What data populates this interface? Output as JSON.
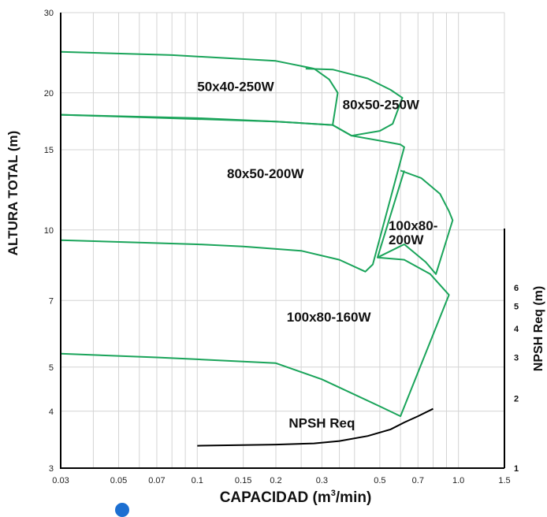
{
  "chart_data": {
    "type": "line",
    "xlabel_main": "CAPACIDAD (m",
    "xlabel_sup": "3",
    "xlabel_tail": "/min)",
    "ylabel": "ALTURA TOTAL (m)",
    "y2label": "NPSH Req (m)",
    "x_scale": "log",
    "y_scale": "log",
    "xlim": [
      0.03,
      1.5
    ],
    "ylim": [
      3,
      30
    ],
    "y2lim": [
      1,
      10
    ],
    "x_ticks": [
      {
        "v": 0.03,
        "label": "0.03"
      },
      {
        "v": 0.05,
        "label": "0.05"
      },
      {
        "v": 0.07,
        "label": "0.07"
      },
      {
        "v": 0.1,
        "label": "0.1"
      },
      {
        "v": 0.15,
        "label": "0.15"
      },
      {
        "v": 0.2,
        "label": "0.2"
      },
      {
        "v": 0.3,
        "label": "0.3"
      },
      {
        "v": 0.5,
        "label": "0.5"
      },
      {
        "v": 0.7,
        "label": "0.7"
      },
      {
        "v": 1.0,
        "label": "1.0"
      },
      {
        "v": 1.5,
        "label": "1.5"
      }
    ],
    "y_ticks": [
      {
        "v": 3,
        "label": "3"
      },
      {
        "v": 4,
        "label": "4"
      },
      {
        "v": 5,
        "label": "5"
      },
      {
        "v": 7,
        "label": "7"
      },
      {
        "v": 10,
        "label": "10"
      },
      {
        "v": 15,
        "label": "15"
      },
      {
        "v": 20,
        "label": "20"
      },
      {
        "v": 30,
        "label": "30"
      }
    ],
    "y2_ticks": [
      {
        "v": 1,
        "label": "1"
      },
      {
        "v": 2,
        "label": "2"
      },
      {
        "v": 3,
        "label": "3"
      },
      {
        "v": 4,
        "label": "4"
      },
      {
        "v": 5,
        "label": "5"
      },
      {
        "v": 6,
        "label": "6"
      }
    ],
    "grid_x": [
      0.03,
      0.04,
      0.05,
      0.06,
      0.07,
      0.08,
      0.09,
      0.1,
      0.15,
      0.2,
      0.25,
      0.3,
      0.35,
      0.4,
      0.5,
      0.6,
      0.7,
      0.8,
      0.9,
      1.0,
      1.5
    ],
    "grid_y": [
      3,
      4,
      5,
      7,
      10,
      15,
      20,
      30
    ],
    "series": [
      {
        "name": "50x40-250W",
        "label_pos": [
          0.1,
          20.2
        ],
        "points": [
          [
            0.03,
            24.6
          ],
          [
            0.08,
            24.2
          ],
          [
            0.2,
            23.5
          ],
          [
            0.28,
            22.6
          ],
          [
            0.32,
            21.4
          ],
          [
            0.345,
            20.0
          ],
          [
            0.33,
            17.0
          ],
          [
            0.2,
            17.3
          ],
          [
            0.1,
            17.6
          ],
          [
            0.03,
            17.9
          ]
        ]
      },
      {
        "name": "80x50-250W",
        "label_pos": [
          0.36,
          18.4
        ],
        "points": [
          [
            0.26,
            22.6
          ],
          [
            0.33,
            22.5
          ],
          [
            0.45,
            21.5
          ],
          [
            0.55,
            20.3
          ],
          [
            0.61,
            19.5
          ],
          [
            0.56,
            17.1
          ],
          [
            0.5,
            16.5
          ],
          [
            0.39,
            16.1
          ],
          [
            0.33,
            17.0
          ]
        ]
      },
      {
        "name": "80x50-200W",
        "label_pos": [
          0.13,
          13.0
        ],
        "points": [
          [
            0.03,
            17.9
          ],
          [
            0.2,
            17.3
          ],
          [
            0.33,
            17.0
          ],
          [
            0.39,
            16.1
          ],
          [
            0.5,
            15.7
          ],
          [
            0.6,
            15.4
          ],
          [
            0.62,
            15.2
          ],
          [
            0.47,
            8.4
          ],
          [
            0.44,
            8.1
          ],
          [
            0.35,
            8.6
          ],
          [
            0.25,
            9.0
          ],
          [
            0.15,
            9.2
          ],
          [
            0.1,
            9.3
          ],
          [
            0.03,
            9.5
          ]
        ]
      },
      {
        "name": "100x80-200W",
        "label_pos": [
          0.54,
          10.0
        ],
        "label_line2": "200W",
        "label_line1": "100x80-",
        "points": [
          [
            0.6,
            13.5
          ],
          [
            0.72,
            13.0
          ],
          [
            0.85,
            12.0
          ],
          [
            0.92,
            11.0
          ],
          [
            0.95,
            10.5
          ],
          [
            0.82,
            8.0
          ],
          [
            0.75,
            8.5
          ],
          [
            0.62,
            9.3
          ],
          [
            0.49,
            8.7
          ],
          [
            0.62,
            13.5
          ]
        ]
      },
      {
        "name": "100x80-160W",
        "label_pos": [
          0.22,
          6.3
        ],
        "points": [
          [
            0.49,
            8.7
          ],
          [
            0.62,
            8.6
          ],
          [
            0.78,
            8.0
          ],
          [
            0.92,
            7.2
          ],
          [
            0.6,
            3.9
          ],
          [
            0.5,
            4.1
          ],
          [
            0.3,
            4.7
          ],
          [
            0.2,
            5.1
          ],
          [
            0.1,
            5.2
          ],
          [
            0.07,
            5.25
          ],
          [
            0.03,
            5.35
          ]
        ]
      }
    ],
    "npsh": {
      "name": "NPSH Req",
      "label_pos": [
        0.3,
        3.68
      ],
      "points": [
        [
          0.1,
          3.36
        ],
        [
          0.2,
          3.38
        ],
        [
          0.28,
          3.4
        ],
        [
          0.35,
          3.44
        ],
        [
          0.45,
          3.53
        ],
        [
          0.55,
          3.65
        ],
        [
          0.62,
          3.78
        ],
        [
          0.7,
          3.9
        ],
        [
          0.8,
          4.05
        ]
      ]
    }
  }
}
